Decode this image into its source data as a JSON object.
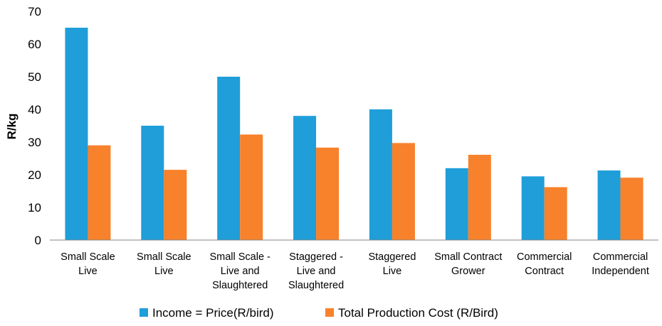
{
  "chart_data": {
    "type": "bar",
    "ylabel": "R/kg",
    "ylim": [
      0,
      70
    ],
    "yticks": [
      0,
      10,
      20,
      30,
      40,
      50,
      60,
      70
    ],
    "grid": false,
    "legend_position": "bottom",
    "categories": [
      [
        "Small Scale",
        "Live"
      ],
      [
        "Small Scale",
        "Live"
      ],
      [
        "Small Scale -",
        "Live and",
        "Slaughtered"
      ],
      [
        "Staggered -",
        "Live and",
        "Slaughtered"
      ],
      [
        "Staggered",
        "Live"
      ],
      [
        "Small Contract",
        "Grower"
      ],
      [
        "Commercial",
        "Contract"
      ],
      [
        "Commercial",
        "Independent"
      ]
    ],
    "series": [
      {
        "name": "Income = Price(R/bird)",
        "color": "#1f9ed9",
        "values": [
          65,
          35,
          50,
          38,
          40,
          22,
          19.5,
          21.3
        ]
      },
      {
        "name": "Total Production Cost (R/Bird)",
        "color": "#f8812b",
        "values": [
          29,
          21.5,
          32.3,
          28.3,
          29.7,
          26.1,
          16.2,
          19.1
        ]
      }
    ]
  }
}
